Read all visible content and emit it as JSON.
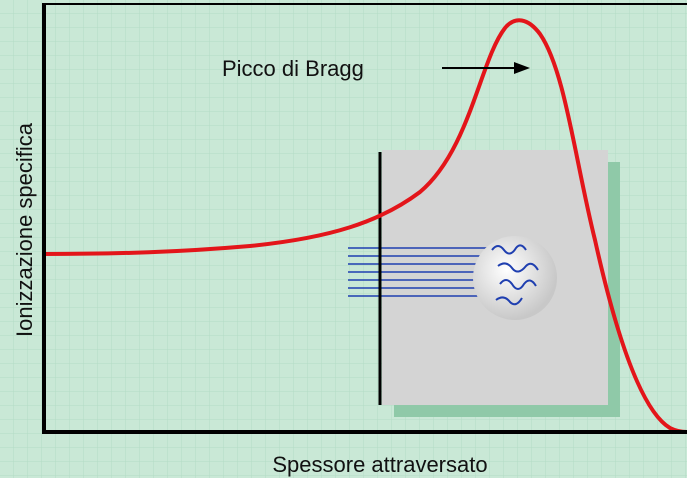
{
  "axes": {
    "x_label": "Spessore attraversato",
    "y_label": "Ionizzazione specifica"
  },
  "annotation": "Picco di Bragg"
}
